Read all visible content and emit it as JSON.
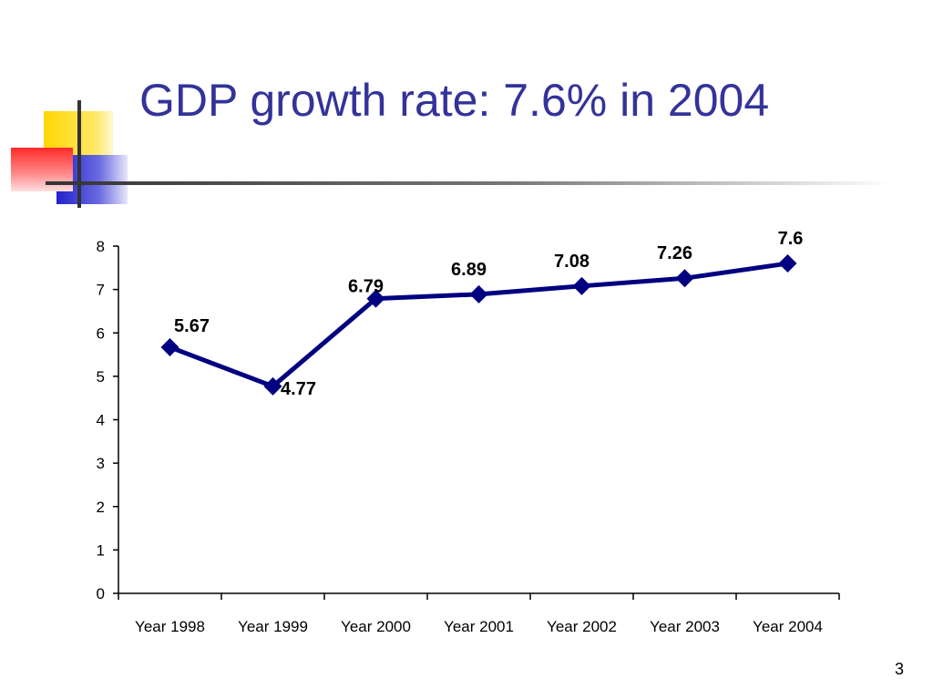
{
  "slide": {
    "title": "GDP growth rate: 7.6% in 2004",
    "page_number": "3"
  },
  "colors": {
    "title": "#333399",
    "series": "#000080",
    "deco_yellow": "#FFD700",
    "deco_red": "#FF3333",
    "deco_blue": "#3333CC"
  },
  "chart_data": {
    "type": "line",
    "title": "",
    "xlabel": "",
    "ylabel": "",
    "categories": [
      "Year 1998",
      "Year 1999",
      "Year 2000",
      "Year 2001",
      "Year 2002",
      "Year 2003",
      "Year 2004"
    ],
    "series": [
      {
        "values": [
          5.67,
          4.77,
          6.79,
          6.89,
          7.08,
          7.26,
          7.6
        ],
        "labels": [
          "5.67",
          "4.77",
          "6.79",
          "6.89",
          "7.08",
          "7.26",
          "7.6"
        ],
        "marker": "diamond"
      }
    ],
    "ylim": [
      0,
      8
    ],
    "yticks": [
      "0",
      "1",
      "2",
      "3",
      "4",
      "5",
      "6",
      "7",
      "8"
    ],
    "grid": false,
    "legend": "none"
  }
}
